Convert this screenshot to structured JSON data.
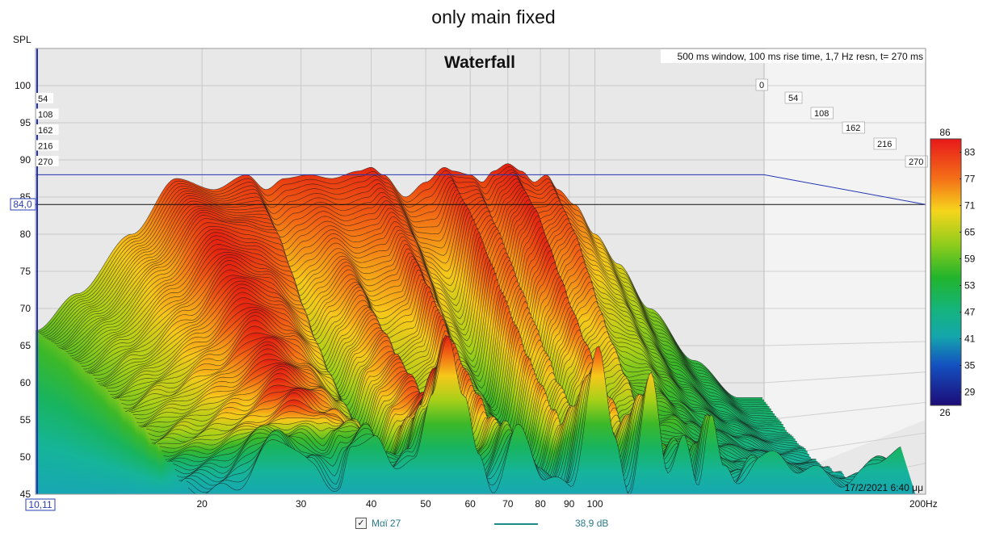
{
  "page_title": "only main fixed",
  "legend_row": {
    "checked": "✓",
    "name": "Μαϊ 27",
    "level": "38,9 dB",
    "line_color": "#1e8a8a"
  },
  "chart_data": {
    "type": "area",
    "title": "Waterfall",
    "info": "500 ms window, 100 ms rise time,  1,7 Hz resn, t= 270 ms",
    "ylabel": "SPL",
    "xunit": "200Hz",
    "ylim": [
      45,
      105
    ],
    "xlim": [
      10.11,
      200
    ],
    "xscale": "log",
    "y_ticks": [
      100,
      95,
      90,
      85,
      80,
      75,
      70,
      65,
      60,
      55,
      50,
      45
    ],
    "x_ticks": [
      20,
      30,
      40,
      50,
      60,
      70,
      80,
      90,
      100
    ],
    "x_start_label": "10,11",
    "cursor_label": "84,0",
    "cursor_spl": 84.0,
    "time_labels_left": [
      "54",
      "108",
      "162",
      "216",
      "270"
    ],
    "time_labels_right": [
      "0",
      "54",
      "108",
      "162",
      "216",
      "270"
    ],
    "timestamp": "17/2/2021 6:40 μμ",
    "colorbar": {
      "top": "86",
      "bottom": "26",
      "ticks": [
        "83",
        "77",
        "71",
        "65",
        "59",
        "53",
        "47",
        "41",
        "35",
        "29"
      ]
    },
    "grid": true,
    "series": [
      {
        "name": "t=0",
        "x": [
          10.11,
          12,
          15,
          18,
          21,
          24,
          26,
          28,
          31,
          34,
          38,
          40,
          42,
          46,
          50,
          54,
          56,
          60,
          63,
          66,
          70,
          74,
          78,
          82,
          86,
          92,
          100,
          110,
          125,
          150,
          180
        ],
        "y": [
          67,
          72,
          80,
          87.5,
          86,
          88,
          86,
          87.5,
          88,
          87.5,
          88.5,
          89,
          88,
          85,
          87,
          89,
          88.5,
          88,
          87,
          88.5,
          89.5,
          88.5,
          87,
          88,
          86,
          84,
          80,
          76,
          70,
          63,
          58
        ]
      },
      {
        "name": "t=54",
        "x": [
          10.11,
          12,
          15,
          18,
          21,
          24,
          26,
          28,
          31,
          34,
          38,
          40,
          42,
          46,
          50,
          54,
          56,
          60,
          63,
          66,
          70,
          74,
          78,
          82,
          86,
          92,
          100,
          110,
          125,
          150,
          180
        ],
        "y": [
          64,
          68,
          75,
          82,
          81,
          80,
          73,
          75,
          78,
          76,
          77,
          80,
          79,
          74,
          71,
          82,
          76,
          80,
          74,
          80,
          83,
          75,
          78,
          80,
          74,
          72,
          70,
          66,
          61,
          56,
          53
        ]
      },
      {
        "name": "t=108",
        "x": [
          10.11,
          12,
          15,
          18,
          21,
          24,
          26,
          28,
          31,
          34,
          38,
          40,
          42,
          46,
          50,
          54,
          56,
          60,
          63,
          66,
          70,
          74,
          78,
          82,
          86,
          92,
          100,
          110,
          125,
          150,
          180
        ],
        "y": [
          60,
          63,
          68,
          74,
          72,
          68,
          62,
          66,
          70,
          64,
          66,
          72,
          68,
          62,
          58,
          72,
          64,
          70,
          62,
          68,
          72,
          64,
          66,
          68,
          62,
          60,
          60,
          57,
          54,
          51,
          49
        ]
      },
      {
        "name": "t=162",
        "x": [
          10.11,
          12,
          15,
          18,
          21,
          24,
          26,
          28,
          31,
          34,
          38,
          40,
          42,
          46,
          50,
          54,
          56,
          60,
          63,
          66,
          70,
          74,
          78,
          82,
          86,
          92,
          100,
          110,
          125,
          150,
          180
        ],
        "y": [
          56,
          58,
          61,
          65,
          62,
          58,
          54,
          60,
          63,
          56,
          58,
          63,
          58,
          54,
          52,
          62,
          56,
          60,
          54,
          58,
          62,
          55,
          57,
          58,
          54,
          53,
          53,
          51,
          49,
          48,
          47
        ]
      },
      {
        "name": "t=216",
        "x": [
          10.11,
          12,
          15,
          18,
          21,
          24,
          26,
          28,
          31,
          34,
          38,
          40,
          42,
          46,
          50,
          54,
          56,
          60,
          63,
          66,
          70,
          74,
          78,
          82,
          86,
          92,
          100,
          110,
          125,
          150,
          180
        ],
        "y": [
          51,
          52,
          54,
          57,
          55,
          52,
          49,
          54,
          57,
          50,
          51,
          55,
          51,
          48,
          47,
          54,
          49,
          53,
          48,
          51,
          54,
          49,
          50,
          51,
          48,
          47,
          47,
          46,
          46,
          45.5,
          45.5
        ]
      },
      {
        "name": "t=270",
        "x": [
          10.11,
          12,
          15,
          17,
          19,
          20,
          22,
          24,
          26,
          28,
          30,
          32,
          34,
          36,
          40,
          45,
          50,
          56,
          60,
          64,
          70,
          75,
          80,
          85,
          90,
          95,
          100,
          110,
          130,
          160,
          190
        ],
        "y": [
          45,
          45,
          52,
          48,
          45,
          50,
          53,
          47,
          50,
          57,
          66,
          58,
          49,
          45,
          53,
          47,
          45,
          64,
          52,
          45,
          60,
          48,
          52,
          45,
          56,
          48,
          45,
          50,
          48,
          46,
          50
        ]
      }
    ]
  }
}
